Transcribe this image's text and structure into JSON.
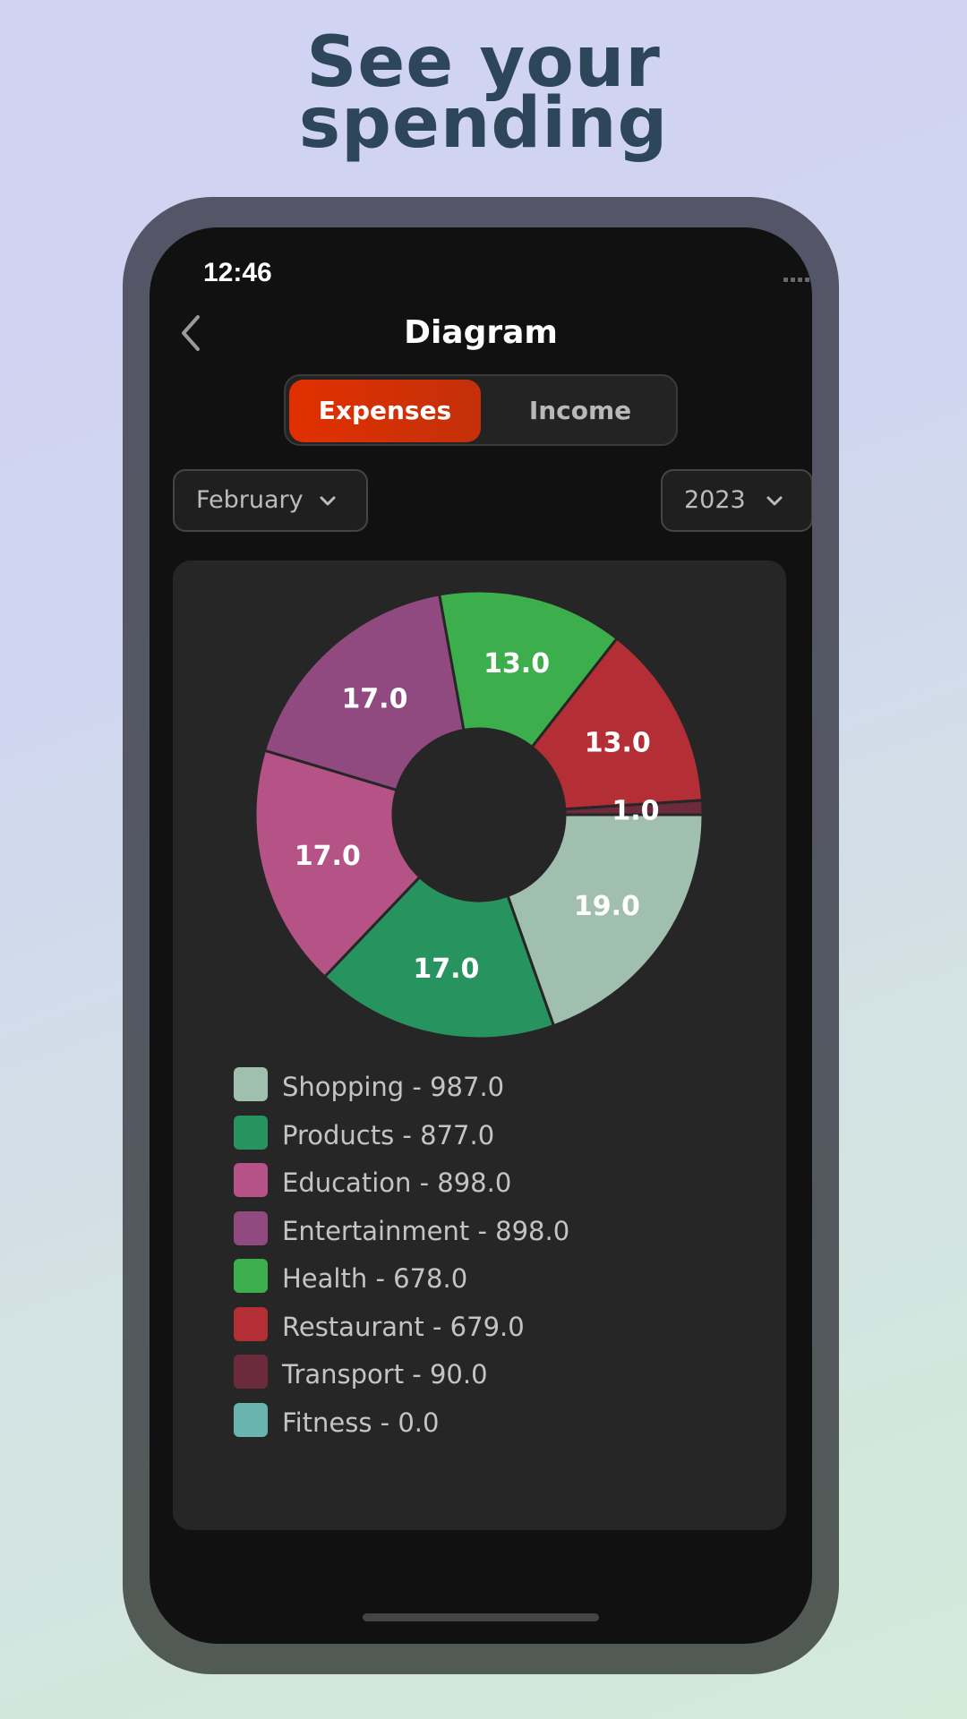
{
  "headline": {
    "line1": "See your",
    "line2": "spending"
  },
  "status_bar": {
    "time": "12:46"
  },
  "nav": {
    "title": "Diagram"
  },
  "segments": {
    "expenses": "Expenses",
    "income": "Income",
    "selected": "Expenses"
  },
  "filters": {
    "month": "February",
    "year": "2023"
  },
  "colors": {
    "accent": "#e13000",
    "shopping": "#a0bfae",
    "products": "#279460",
    "education": "#b65386",
    "entertainment": "#914a80",
    "health": "#3caf4c",
    "restaurant": "#b42e35",
    "transport": "#6c2a3d",
    "fitness": "#6ab4ae"
  },
  "chart_data": {
    "type": "pie",
    "donut": true,
    "categories": [
      "Shopping",
      "Products",
      "Education",
      "Entertainment",
      "Health",
      "Restaurant",
      "Transport",
      "Fitness"
    ],
    "values": [
      19.0,
      17.0,
      17.0,
      17.0,
      13.0,
      13.0,
      1.0,
      0.0
    ],
    "slice_labels": [
      "19.0",
      "17.0",
      "17.0",
      "17.0",
      "13.0",
      "13.0",
      "1.0",
      ""
    ],
    "amounts": [
      987.0,
      877.0,
      898.0,
      898.0,
      678.0,
      679.0,
      90.0,
      0.0
    ],
    "legend_entries": [
      "Shopping - 987.0",
      "Products - 877.0",
      "Education - 898.0",
      "Entertainment - 898.0",
      "Health - 678.0",
      "Restaurant - 679.0",
      "Transport - 90.0",
      "Fitness - 0.0"
    ],
    "legend_placement": "bottom"
  }
}
